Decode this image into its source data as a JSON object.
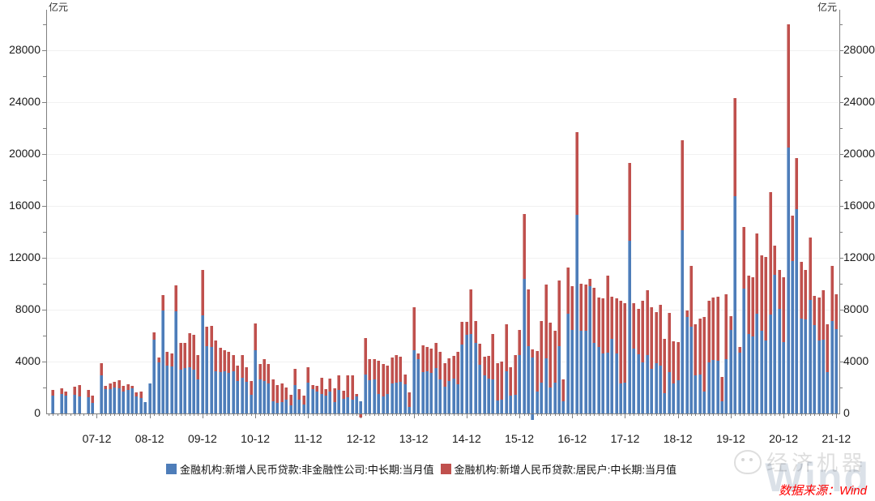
{
  "unit_label_left": "亿元",
  "unit_label_right": "亿元",
  "legend": {
    "items": [
      {
        "label": "金融机构:新增人民币贷款:非金融性公司:中长期:当月值",
        "color": "#4e7db9"
      },
      {
        "label": "金融机构:新增人民币贷款:居民户:中长期:当月值",
        "color": "#c0504d"
      }
    ]
  },
  "source_note": "数据来源：Wind",
  "watermark": {
    "brand": "经济机器",
    "wind": "Wind",
    "wechat_icon": "wechat-bubble-icon"
  },
  "chart_data": {
    "type": "bar",
    "stacked": true,
    "title": "",
    "xlabel": "",
    "ylabel": "亿元",
    "ylim": [
      0,
      31125
    ],
    "grid": "horizontal, every 4000",
    "legend_position": "bottom-center",
    "y_tick_step_labeled": 4000,
    "y_tick_step_minor": 2000,
    "y_tick_labels": [
      "0",
      "4000",
      "8000",
      "12000",
      "16000",
      "20000",
      "24000",
      "28000"
    ],
    "x_tick_labels": [
      "07-12",
      "08-12",
      "09-12",
      "10-12",
      "11-12",
      "12-12",
      "13-12",
      "14-12",
      "15-12",
      "16-12",
      "17-12",
      "18-12",
      "19-12",
      "20-12",
      "21-12"
    ],
    "x_start_month": "2007-01",
    "months_total": 180,
    "series": [
      {
        "name": "金融机构:新增人民币贷款:非金融性公司:中长期:当月值",
        "color": "#4e7db9"
      },
      {
        "name": "金融机构:新增人民币贷款:居民户:中长期:当月值",
        "color": "#c0504d"
      }
    ],
    "points_note": "per month [corporate_blue, household_red], 亿元; [0,0] = no bar shown",
    "points": [
      [
        0,
        0
      ],
      [
        1380,
        460
      ],
      [
        0,
        0
      ],
      [
        1500,
        460
      ],
      [
        1350,
        350
      ],
      [
        0,
        0
      ],
      [
        1430,
        630
      ],
      [
        1300,
        900
      ],
      [
        0,
        0
      ],
      [
        1230,
        580
      ],
      [
        810,
        540
      ],
      [
        0,
        0
      ],
      [
        2950,
        940
      ],
      [
        1880,
        250
      ],
      [
        1880,
        420
      ],
      [
        2020,
        420
      ],
      [
        1920,
        630
      ],
      [
        1710,
        420
      ],
      [
        1810,
        420
      ],
      [
        1920,
        210
      ],
      [
        1290,
        310
      ],
      [
        1190,
        520
      ],
      [
        880,
        0
      ],
      [
        2330,
        0
      ],
      [
        5670,
        580
      ],
      [
        3960,
        350
      ],
      [
        7960,
        1170
      ],
      [
        3710,
        1040
      ],
      [
        3650,
        980
      ],
      [
        7880,
        2020
      ],
      [
        3380,
        2080
      ],
      [
        3480,
        1980
      ],
      [
        3580,
        2630
      ],
      [
        3380,
        2700
      ],
      [
        2600,
        1920
      ],
      [
        7540,
        3540
      ],
      [
        5210,
        1460
      ],
      [
        5150,
        1580
      ],
      [
        3230,
        2400
      ],
      [
        3170,
        1900
      ],
      [
        3270,
        1620
      ],
      [
        3130,
        1600
      ],
      [
        3230,
        1250
      ],
      [
        2500,
        1190
      ],
      [
        2750,
        1730
      ],
      [
        2440,
        1150
      ],
      [
        1460,
        1040
      ],
      [
        4900,
        2020
      ],
      [
        2650,
        1150
      ],
      [
        2500,
        1670
      ],
      [
        2330,
        1460
      ],
      [
        940,
        1670
      ],
      [
        830,
        1350
      ],
      [
        880,
        1420
      ],
      [
        1080,
        900
      ],
      [
        630,
        830
      ],
      [
        2190,
        1250
      ],
      [
        1080,
        790
      ],
      [
        670,
        690
      ],
      [
        2400,
        1190
      ],
      [
        1880,
        310
      ],
      [
        1710,
        420
      ],
      [
        1500,
        1250
      ],
      [
        1400,
        480
      ],
      [
        1670,
        1040
      ],
      [
        880,
        1040
      ],
      [
        1810,
        1150
      ],
      [
        1150,
        630
      ],
      [
        1250,
        1670
      ],
      [
        1080,
        1830
      ],
      [
        1290,
        210
      ],
      [
        940,
        0
      ],
      [
        3020,
        2810
      ],
      [
        2540,
        1670
      ],
      [
        2600,
        1600
      ],
      [
        1500,
        2560
      ],
      [
        1290,
        2500
      ],
      [
        1500,
        2210
      ],
      [
        2330,
        2000
      ],
      [
        2400,
        2080
      ],
      [
        2440,
        1940
      ],
      [
        2250,
        770
      ],
      [
        500,
        1100
      ],
      [
        4900,
        3300
      ],
      [
        4210,
        400
      ],
      [
        3170,
        2080
      ],
      [
        3270,
        1880
      ],
      [
        3130,
        1880
      ],
      [
        3480,
        1980
      ],
      [
        2600,
        2130
      ],
      [
        2080,
        1770
      ],
      [
        2500,
        1770
      ],
      [
        2710,
        1710
      ],
      [
        2250,
        2480
      ],
      [
        5310,
        1770
      ],
      [
        6080,
        1000
      ],
      [
        6150,
        3390
      ],
      [
        5460,
        1670
      ],
      [
        3750,
        1630
      ],
      [
        2960,
        1420
      ],
      [
        2710,
        1710
      ],
      [
        2600,
        3540
      ],
      [
        980,
        2920
      ],
      [
        1080,
        2920
      ],
      [
        3230,
        3650
      ],
      [
        1400,
        2190
      ],
      [
        1460,
        3020
      ],
      [
        4480,
        1940
      ],
      [
        10400,
        5000
      ],
      [
        5170,
        4370
      ],
      [
        4310,
        600
      ],
      [
        1670,
        3170
      ],
      [
        2400,
        4730
      ],
      [
        4270,
        5670
      ],
      [
        1980,
        5000
      ],
      [
        2375,
        3980
      ],
      [
        5170,
        5080
      ],
      [
        940,
        1710
      ],
      [
        7670,
        3580
      ],
      [
        6460,
        3380
      ],
      [
        15290,
        6370
      ],
      [
        6350,
        3650
      ],
      [
        6350,
        3580
      ],
      [
        9790,
        580
      ],
      [
        5420,
        4250
      ],
      [
        5150,
        3810
      ],
      [
        4630,
        4230
      ],
      [
        4690,
        5940
      ],
      [
        5730,
        3290
      ],
      [
        4630,
        4230
      ],
      [
        2330,
        6380
      ],
      [
        2400,
        6100
      ],
      [
        13330,
        6000
      ],
      [
        5000,
        3480
      ],
      [
        4580,
        3480
      ],
      [
        3960,
        4730
      ],
      [
        4480,
        5040
      ],
      [
        3440,
        4730
      ],
      [
        3900,
        3920
      ],
      [
        3690,
        4690
      ],
      [
        1560,
        4210
      ],
      [
        3170,
        4580
      ],
      [
        2330,
        3230
      ],
      [
        2540,
        2980
      ],
      [
        14130,
        6960
      ],
      [
        7440,
        480
      ],
      [
        6710,
        4650
      ],
      [
        2920,
        3960
      ],
      [
        3020,
        4270
      ],
      [
        1670,
        5770
      ],
      [
        3920,
        4790
      ],
      [
        4100,
        4860
      ],
      [
        4060,
        4960
      ],
      [
        940,
        1870
      ],
      [
        4210,
        4960
      ],
      [
        6460,
        1040
      ],
      [
        16730,
        7580
      ],
      [
        4690,
        420
      ],
      [
        9640,
        4740
      ],
      [
        6150,
        4480
      ],
      [
        5940,
        4580
      ],
      [
        7710,
        6150
      ],
      [
        6350,
        5830
      ],
      [
        5630,
        6460
      ],
      [
        7600,
        9480
      ],
      [
        10670,
        2290
      ],
      [
        8080,
        2960
      ],
      [
        5520,
        5000
      ],
      [
        20520,
        9480
      ],
      [
        11770,
        3500
      ],
      [
        15770,
        3920
      ],
      [
        7290,
        4420
      ],
      [
        7250,
        3830
      ],
      [
        8750,
        4790
      ],
      [
        6830,
        2230
      ],
      [
        5630,
        3290
      ],
      [
        5690,
        3830
      ],
      [
        3170,
        3710
      ],
      [
        7130,
        4230
      ],
      [
        6500,
        2700
      ]
    ],
    "negative_segments": [
      {
        "month_index": 71,
        "series": "red",
        "value": -250
      },
      {
        "month_index": 110,
        "series": "blue",
        "value": -420
      }
    ]
  }
}
